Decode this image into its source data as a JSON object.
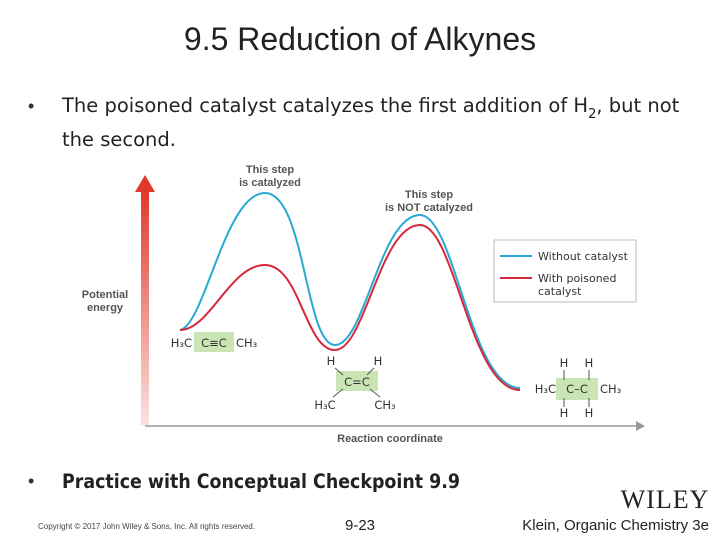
{
  "header": {
    "title": "9.5 Reduction of Alkynes"
  },
  "bullets": [
    {
      "marker": "•",
      "text_before": "The poisoned catalyst catalyzes the first addition of H",
      "subscript": "2",
      "text_after": ", but not the second."
    },
    {
      "marker": "•",
      "text": "Practice with Conceptual Checkpoint 9.9"
    }
  ],
  "figure": {
    "y_axis_label": [
      "Potential",
      "energy"
    ],
    "x_axis_label": "Reaction coordinate",
    "annotations": [
      [
        "This step",
        "is catalyzed"
      ],
      [
        "This step",
        "is NOT catalyzed"
      ]
    ],
    "legend": [
      {
        "label": [
          "Without catalyst"
        ],
        "color": "#29a8d6"
      },
      {
        "label": [
          "With poisoned",
          "catalyst"
        ],
        "color": "#d6283a"
      }
    ],
    "alkyne": {
      "left": "H₃C",
      "center": "C≡C",
      "right": "CH₃"
    },
    "alkene": {
      "top_left": "H",
      "top_right": "H",
      "center": "C=C",
      "bottom_left": "H₃C",
      "bottom_right": "CH₃"
    },
    "alkane": {
      "top_left": "H",
      "top_right": "H",
      "left": "H₃C",
      "center": "C–C",
      "right": "CH₃",
      "bottom_left": "H",
      "bottom_right": "H"
    }
  },
  "footer": {
    "copyright": "Copyright © 2017 John Wiley & Sons, Inc. All rights reserved.",
    "page": "9-23",
    "publisher": "WILEY",
    "book": "Klein, Organic Chemistry 3e"
  }
}
